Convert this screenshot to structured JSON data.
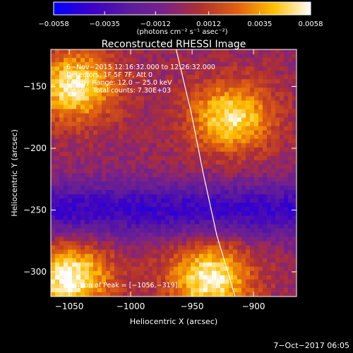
{
  "chart_data": {
    "type": "heatmap",
    "title": "Reconstructed RHESSI Image",
    "xlabel": "Heliocentric X (arcsec)",
    "ylabel": "Heliocentric Y (arcsec)",
    "xlim": [
      -1065,
      -865
    ],
    "ylim": [
      -320,
      -120
    ],
    "x_ticks": [
      {
        "value": -1050,
        "label": "−1050"
      },
      {
        "value": -1000,
        "label": "−1000"
      },
      {
        "value": -950,
        "label": "−950"
      },
      {
        "value": -900,
        "label": "−900"
      }
    ],
    "y_ticks": [
      {
        "value": -150,
        "label": "−150"
      },
      {
        "value": -200,
        "label": "−200"
      },
      {
        "value": -250,
        "label": "−250"
      },
      {
        "value": -300,
        "label": "−300"
      }
    ],
    "colorbar": {
      "range": [
        -0.0058,
        0.0058
      ],
      "ticks": [
        {
          "value": -0.0058,
          "label": "−0.0058"
        },
        {
          "value": -0.0035,
          "label": "−0.0035"
        },
        {
          "value": -0.0012,
          "label": "−0.0012"
        },
        {
          "value": 0.0012,
          "label": "0.0012"
        },
        {
          "value": 0.0035,
          "label": "0.0035"
        },
        {
          "value": 0.0058,
          "label": "0.0058"
        }
      ],
      "unit_label": "(photons cm⁻² s⁻¹ asec⁻²)",
      "colors": [
        "#0000ff",
        "#3a00c8",
        "#5a1a9e",
        "#7a2288",
        "#b03030",
        "#e06010",
        "#ffc000",
        "#ffffff"
      ]
    },
    "annotations": [
      "6−Nov−2015 12:16:32.000 to 12:26:32.000",
      "Detectors: 1F 5F 7F, Att 0",
      "Energy Range: 12.0 − 25.0 keV",
      "clean    Total counts: 7.30E+03"
    ],
    "peak_label": "Position of Peak = [−1056,−319]",
    "peak": [
      -1056,
      -319
    ],
    "grid": false,
    "sources": [
      {
        "x": -1045,
        "y": -150,
        "amp": 0.0054
      },
      {
        "x": -1050,
        "y": -305,
        "amp": 0.0058
      },
      {
        "x": -918,
        "y": -175,
        "amp": 0.0052
      },
      {
        "x": -935,
        "y": -305,
        "amp": 0.0056
      }
    ],
    "limb_curve": [
      {
        "x": -963,
        "y": -120
      },
      {
        "x": -951,
        "y": -170
      },
      {
        "x": -941,
        "y": -220
      },
      {
        "x": -930,
        "y": -270
      },
      {
        "x": -915,
        "y": -320
      }
    ],
    "footer": "7−Oct−2017 06:05"
  }
}
